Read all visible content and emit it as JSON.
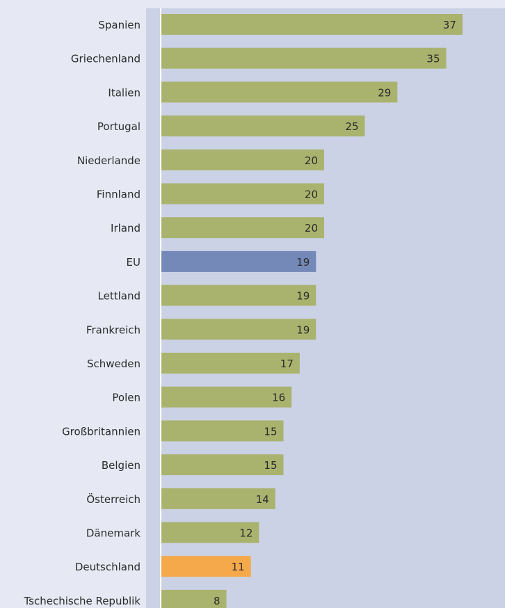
{
  "chart_data": {
    "type": "bar",
    "orientation": "horizontal",
    "categories": [
      "Spanien",
      "Griechenland",
      "Italien",
      "Portugal",
      "Niederlande",
      "Finnland",
      "Irland",
      "EU",
      "Lettland",
      "Frankreich",
      "Schweden",
      "Polen",
      "Großbritannien",
      "Belgien",
      "Österreich",
      "Dänemark",
      "Deutschland",
      "Tschechische Republik"
    ],
    "values": [
      37,
      35,
      29,
      25,
      20,
      20,
      20,
      19,
      19,
      19,
      17,
      16,
      15,
      15,
      14,
      12,
      11,
      8
    ],
    "data_labels": [
      "37",
      "35",
      "29",
      "25",
      "20",
      "20",
      "20",
      "19",
      "19",
      "19",
      "17",
      "16",
      "15",
      "15",
      "14",
      "12",
      "11",
      "8"
    ],
    "highlight": {
      "EU": "#7489b8",
      "Deutschland": "#f5a94a"
    },
    "default_color": "#aab36e",
    "plot_background": "#cbd2e6",
    "page_background": "#e6e9f3",
    "xlim": [
      0,
      42
    ],
    "grid": false,
    "legend": "none"
  }
}
